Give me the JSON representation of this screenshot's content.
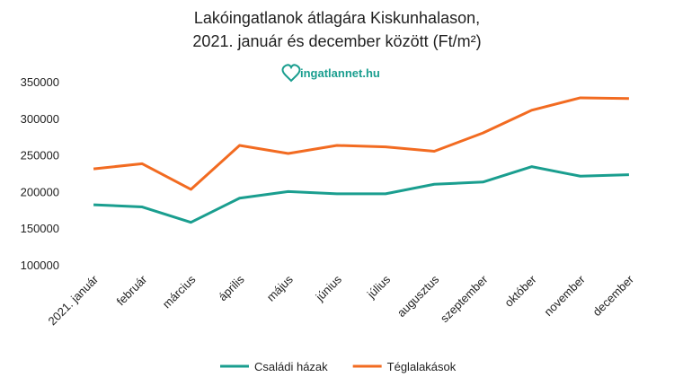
{
  "chart_data": {
    "type": "line",
    "title": [
      "Lakóingatlanok átlagára Kiskunhalason,",
      "2021. január és december között (Ft/m²)"
    ],
    "watermark": "ingatlannet.hu",
    "categories": [
      "2021. január",
      "február",
      "március",
      "április",
      "május",
      "június",
      "július",
      "augusztus",
      "szeptember",
      "október",
      "november",
      "december"
    ],
    "series": [
      {
        "name": "Családi házak",
        "color": "#1a9e8f",
        "values": [
          182000,
          179000,
          158000,
          191000,
          200000,
          197000,
          197000,
          210000,
          213000,
          234000,
          221000,
          223000
        ]
      },
      {
        "name": "Téglalakások",
        "color": "#f26b21",
        "values": [
          231000,
          238000,
          203000,
          263000,
          252000,
          263000,
          261000,
          255000,
          280000,
          311000,
          328000,
          327000
        ]
      }
    ],
    "ylim": [
      100000,
      350000
    ],
    "yticks": [
      100000,
      150000,
      200000,
      250000,
      300000,
      350000
    ],
    "grid": false,
    "legend": "bottom"
  }
}
